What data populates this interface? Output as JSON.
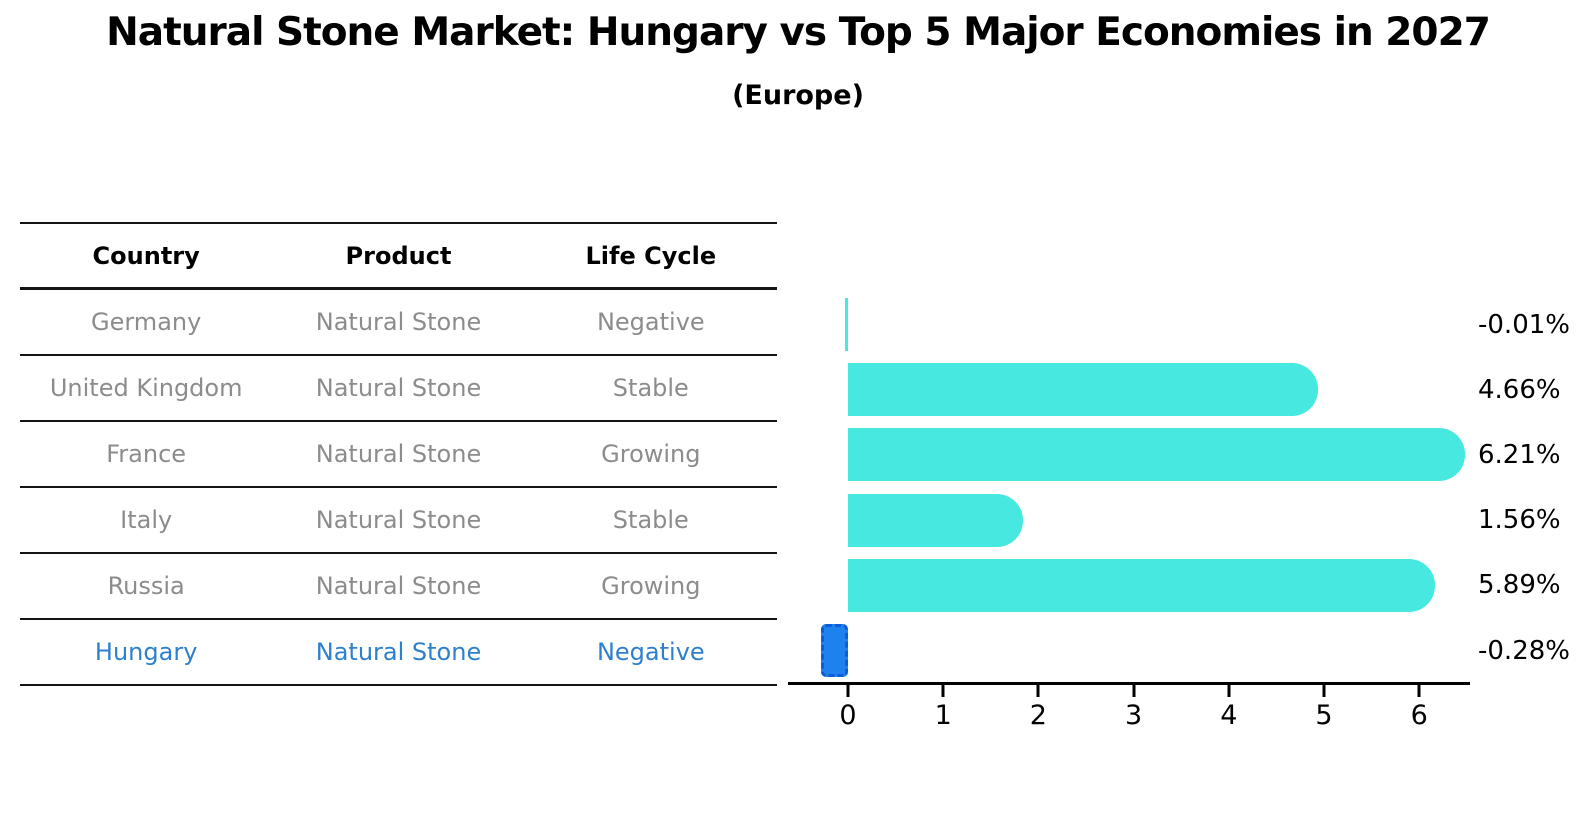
{
  "title": "Natural Stone Market: Hungary vs Top 5 Major Economies in 2027",
  "subtitle": "(Europe)",
  "table": {
    "headers": [
      "Country",
      "Product",
      "Life Cycle"
    ],
    "rows": [
      [
        "Germany",
        "Natural Stone",
        "Negative"
      ],
      [
        "United Kingdom",
        "Natural Stone",
        "Stable"
      ],
      [
        "France",
        "Natural Stone",
        "Growing"
      ],
      [
        "Italy",
        "Natural Stone",
        "Stable"
      ],
      [
        "Russia",
        "Natural Stone",
        "Growing"
      ],
      [
        "Hungary",
        "Natural Stone",
        "Negative"
      ]
    ],
    "highlight_row_index": 5,
    "text_color": "#8C8C8C",
    "highlight_text_color": "#2E80CC"
  },
  "chart_data": {
    "type": "bar",
    "orientation": "horizontal",
    "title": "Natural Stone Market: Hungary vs Top 5 Major Economies in 2027",
    "subtitle": "(Europe)",
    "categories": [
      "Germany",
      "United Kingdom",
      "France",
      "Italy",
      "Russia",
      "Hungary"
    ],
    "values": [
      -0.01,
      4.66,
      6.21,
      1.56,
      5.89,
      -0.28
    ],
    "value_labels": [
      "-0.01%",
      "4.66%",
      "6.21%",
      "1.56%",
      "5.89%",
      "-0.28%"
    ],
    "x_ticks": [
      0,
      1,
      2,
      3,
      4,
      5,
      6
    ],
    "x_tick_labels": [
      "0",
      "1",
      "2",
      "3",
      "4",
      "5",
      "6"
    ],
    "xlim": [
      -0.61,
      6.55
    ],
    "grid": false,
    "legend": "none",
    "bar_color": "#47E8DF",
    "highlight_bar_color": "#1E82EE",
    "highlight_bar_border_color": "#0C5ED8",
    "highlight_index": 5
  }
}
